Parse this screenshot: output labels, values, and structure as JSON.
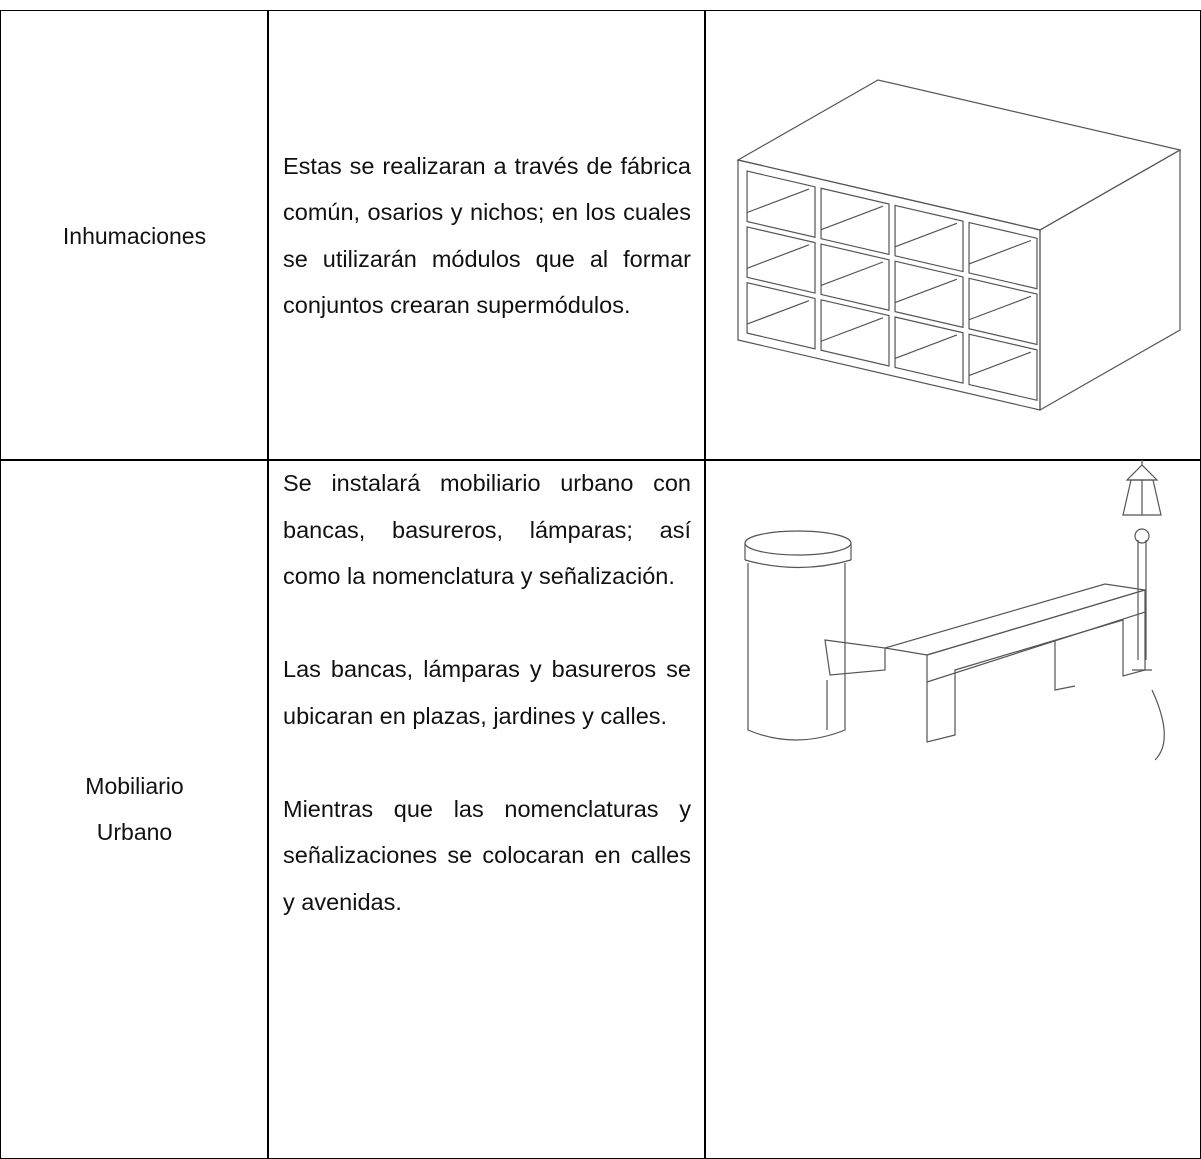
{
  "table": {
    "rows": [
      {
        "label": "Inhumaciones",
        "paragraphs": [
          "Estas se realizaran a través de fábrica común, osarios y nichos; en los cuales se utilizarán módulos que al formar conjuntos crearan supermódulos."
        ]
      },
      {
        "label": "Mobiliario Urbano",
        "paragraphs": [
          "Se instalará mobiliario urbano con bancas, basureros, lámparas; así como la nomenclatura y señalización.",
          "Las bancas, lámparas y basureros se ubicaran en plazas, jardines y calles.",
          "Mientras que las nomenclaturas y señalizaciones se colocaran en calles y avenidas."
        ]
      }
    ]
  }
}
